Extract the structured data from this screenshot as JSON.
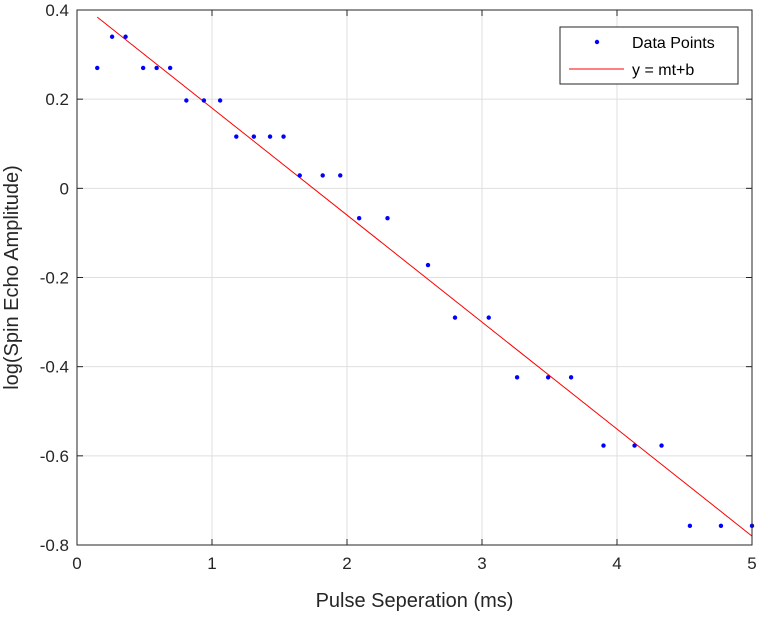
{
  "chart_data": {
    "type": "scatter",
    "title": "",
    "xlabel": "Pulse Seperation (ms)",
    "ylabel": "log(Spin Echo Amplitude)",
    "xlim": [
      0,
      5
    ],
    "ylim": [
      -0.8,
      0.4
    ],
    "xticks": [
      0,
      1,
      2,
      3,
      4,
      5
    ],
    "xtick_labels": [
      "0",
      "1",
      "2",
      "3",
      "4",
      "5"
    ],
    "yticks": [
      -0.8,
      -0.6,
      -0.4,
      -0.2,
      0,
      0.2,
      0.4
    ],
    "ytick_labels": [
      "-0.8",
      "-0.6",
      "-0.4",
      "-0.2",
      "0",
      "0.2",
      "0.4"
    ],
    "grid": true,
    "legend_position": "top-right",
    "series": [
      {
        "name": "Data Points",
        "kind": "scatter",
        "color": "#0000ff",
        "x": [
          0.15,
          0.26,
          0.36,
          0.49,
          0.59,
          0.69,
          0.81,
          0.94,
          1.06,
          1.18,
          1.31,
          1.43,
          1.53,
          1.65,
          1.82,
          1.95,
          2.09,
          2.3,
          2.6,
          2.8,
          3.05,
          3.26,
          3.49,
          3.66,
          3.9,
          4.13,
          4.33,
          4.54,
          4.77,
          5.0
        ],
        "y": [
          0.27,
          0.34,
          0.34,
          0.27,
          0.27,
          0.27,
          0.197,
          0.197,
          0.197,
          0.116,
          0.116,
          0.116,
          0.116,
          0.029,
          0.029,
          0.029,
          -0.067,
          -0.067,
          -0.172,
          -0.29,
          -0.29,
          -0.424,
          -0.424,
          -0.424,
          -0.577,
          -0.577,
          -0.577,
          -0.757,
          -0.757,
          -0.757
        ]
      },
      {
        "name": "y = mt+b",
        "kind": "line",
        "color": "#ff0000",
        "x": [
          0.15,
          5.0
        ],
        "y": [
          0.384,
          -0.78
        ]
      }
    ]
  }
}
